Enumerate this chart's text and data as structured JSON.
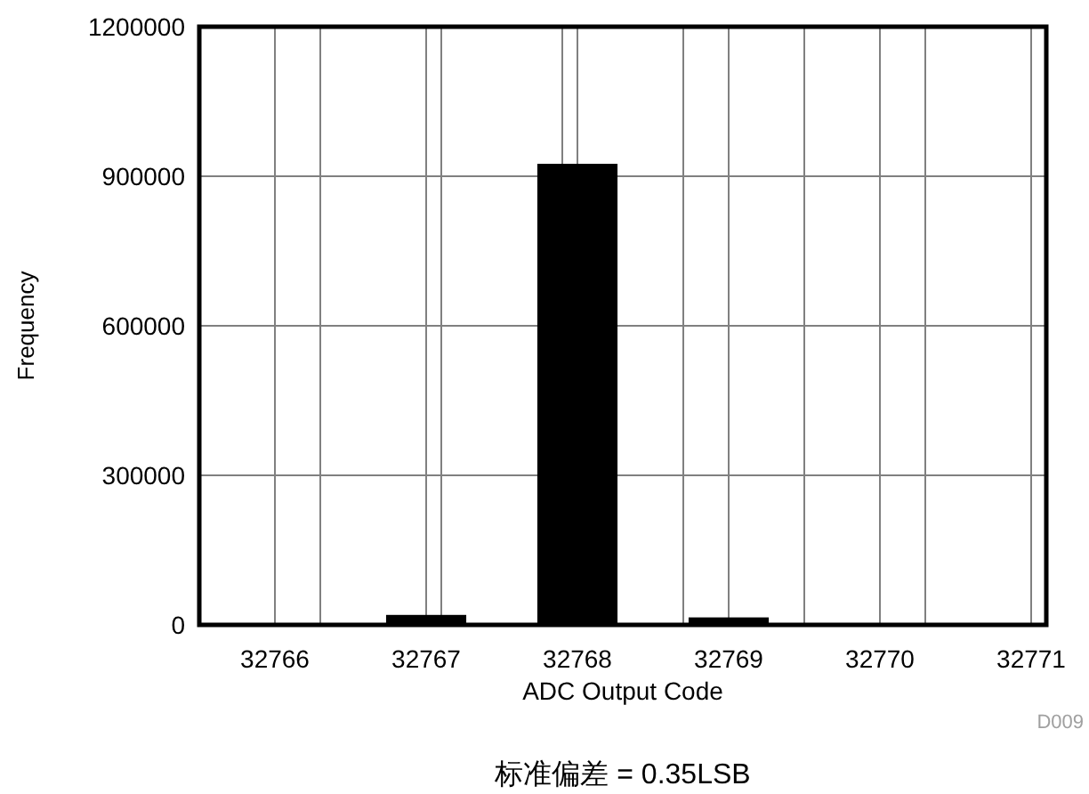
{
  "chart_data": {
    "type": "bar",
    "xlabel": "ADC Output Code",
    "ylabel": "Frequency",
    "x": [
      32766,
      32767,
      32768,
      32769,
      32770,
      32771
    ],
    "values": [
      0,
      20000,
      925000,
      15000,
      0,
      0
    ],
    "color": "#000000",
    "xlim": [
      32765.5,
      32771.1
    ],
    "ylim": [
      0,
      1200000
    ],
    "xticks": [
      32766,
      32767,
      32768,
      32769,
      32770,
      32771,
      {
        "value": 32766.3,
        "label": null
      },
      {
        "value": 32767.1,
        "label": null
      },
      {
        "value": 32767.9,
        "label": null
      },
      {
        "value": 32768.7,
        "label": null
      },
      {
        "value": 32769.5,
        "label": null
      },
      {
        "value": 32770.3,
        "label": null
      }
    ],
    "yticks": [
      0,
      300000,
      600000,
      900000,
      1200000
    ],
    "grid": true,
    "annotations": [
      "D009",
      "标准偏差 = 0.35LSB"
    ]
  }
}
